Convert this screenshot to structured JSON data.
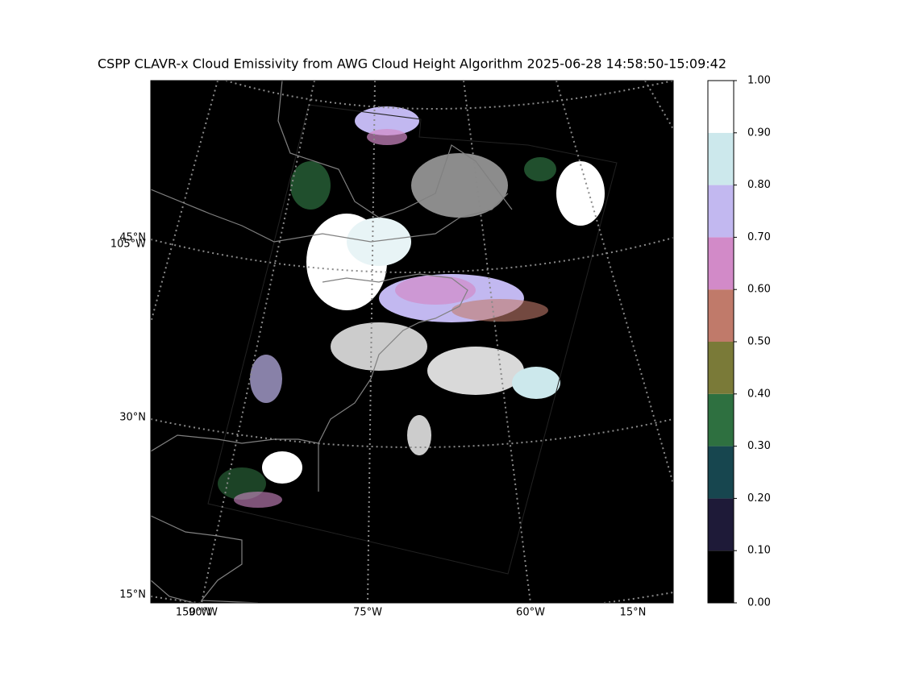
{
  "title": "CSPP CLAVR-x Cloud Emissivity from AWG Cloud Height Algorithm 2025-06-28 14:58:50-15:09:42",
  "map": {
    "lat_labels": [
      "45°N",
      "30°N",
      "15°N"
    ],
    "lon_labels": [
      "105°W",
      "150°W",
      "90°W",
      "75°W",
      "60°W",
      "15°N"
    ]
  },
  "colorbar": {
    "lim": [
      0,
      1
    ],
    "ticks": [
      {
        "value": 0,
        "label": "0.00"
      },
      {
        "value": 0.1,
        "label": "0.10"
      },
      {
        "value": 0.2,
        "label": "0.20"
      },
      {
        "value": 0.3,
        "label": "0.30"
      },
      {
        "value": 0.4,
        "label": "0.40"
      },
      {
        "value": 0.5,
        "label": "0.50"
      },
      {
        "value": 0.6,
        "label": "0.60"
      },
      {
        "value": 0.7,
        "label": "0.70"
      },
      {
        "value": 0.8,
        "label": "0.80"
      },
      {
        "value": 0.9,
        "label": "0.90"
      },
      {
        "value": 1,
        "label": "1.00"
      }
    ],
    "colors": [
      "#000000",
      "#1e1a38",
      "#17464f",
      "#2e7040",
      "#7a7a38",
      "#c07a6a",
      "#d28ac8",
      "#c2b8f0",
      "#cce8ec",
      "#ffffff"
    ]
  }
}
